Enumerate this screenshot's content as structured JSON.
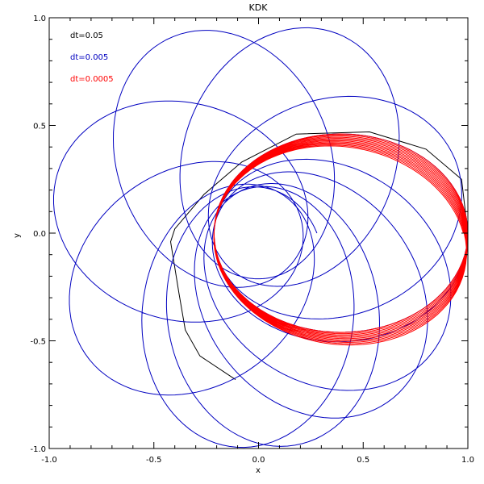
{
  "chart_data": {
    "type": "line",
    "title": "KDK",
    "xlabel": "x",
    "ylabel": "y",
    "xlim": [
      -1.0,
      1.0
    ],
    "ylim": [
      -1.0,
      1.0
    ],
    "x_ticks": [
      -1.0,
      -0.5,
      0.0,
      0.5,
      1.0
    ],
    "y_ticks": [
      -1.0,
      -0.5,
      0.0,
      0.5,
      1.0
    ],
    "x_tick_labels": [
      "-1.0",
      "-0.5",
      "0.0",
      "0.5",
      "1.0"
    ],
    "y_tick_labels": [
      "-1.0",
      "-0.5",
      "0.0",
      "0.5",
      "1.0"
    ],
    "grid": false,
    "legend_position": "top-left",
    "series": [
      {
        "name": "dt=0.05",
        "color": "#000000",
        "points": [
          [
            1.0,
            0.0
          ],
          [
            0.97,
            0.25
          ],
          [
            0.8,
            0.39
          ],
          [
            0.53,
            0.47
          ],
          [
            0.18,
            0.46
          ],
          [
            -0.08,
            0.33
          ],
          [
            -0.26,
            0.18
          ],
          [
            -0.4,
            0.02
          ],
          [
            -0.42,
            -0.04
          ],
          [
            -0.38,
            -0.28
          ],
          [
            -0.35,
            -0.45
          ],
          [
            -0.28,
            -0.57
          ],
          [
            -0.11,
            -0.68
          ]
        ]
      },
      {
        "name": "dt=0.005",
        "color": "#0000c0",
        "orbit": {
          "rp": 0.21,
          "e": 0.65,
          "orbits": 12,
          "rotation_per_orbit_deg": 43,
          "final_apocenter_x": 1.0
        }
      },
      {
        "name": "dt=0.0005",
        "color": "#ff0000",
        "orbit": {
          "rp": 0.21,
          "e": 0.65,
          "orbits": 12,
          "rotation_per_orbit_deg": 0.8,
          "final_apocenter_x": 1.0
        }
      }
    ]
  }
}
